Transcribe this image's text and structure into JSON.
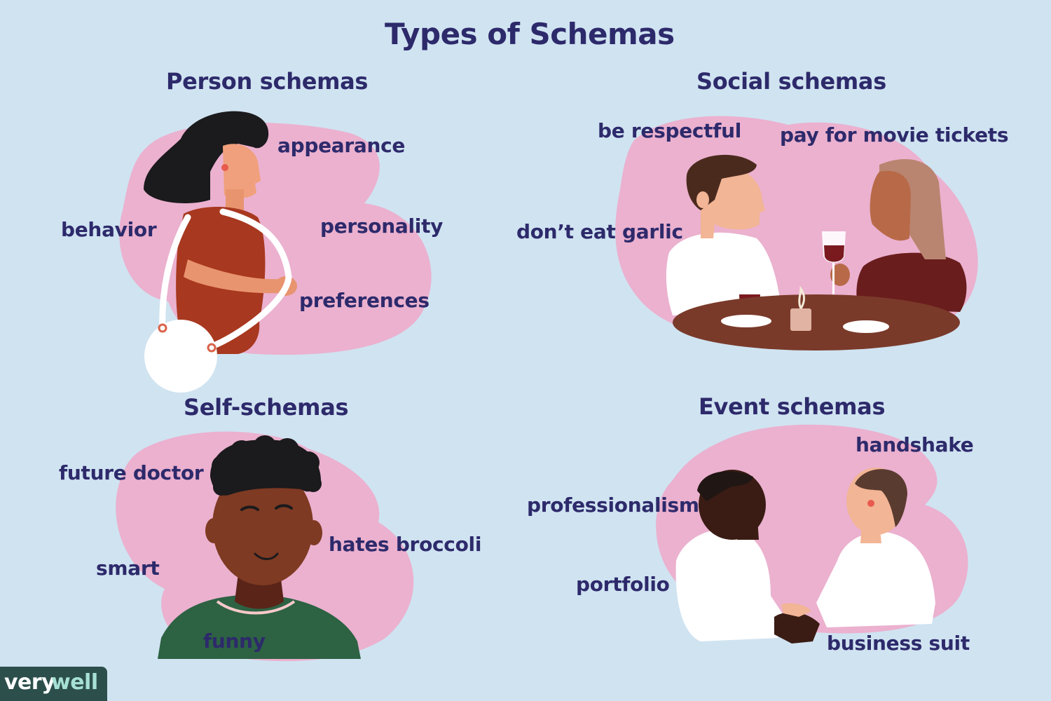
{
  "title": "Types of Schemas",
  "colors": {
    "background": "#d0e3f1",
    "blob": "#ebb1cf",
    "text": "#2d2a6b",
    "logo_bg": "#2d4f4c",
    "logo_accent": "#a7e0d4"
  },
  "sections": {
    "person": {
      "heading": "Person schemas",
      "labels": [
        "appearance",
        "behavior",
        "personality",
        "preferences"
      ]
    },
    "social": {
      "heading": "Social schemas",
      "labels": [
        "be respectful",
        "pay for movie tickets",
        "don’t eat garlic"
      ]
    },
    "self": {
      "heading": "Self-schemas",
      "labels": [
        "future doctor",
        "hates broccoli",
        "smart",
        "funny"
      ]
    },
    "event": {
      "heading": "Event schemas",
      "labels": [
        "handshake",
        "professionalism",
        "portfolio",
        "business suit"
      ]
    }
  },
  "logo": {
    "part1": "very",
    "part2": "well"
  }
}
